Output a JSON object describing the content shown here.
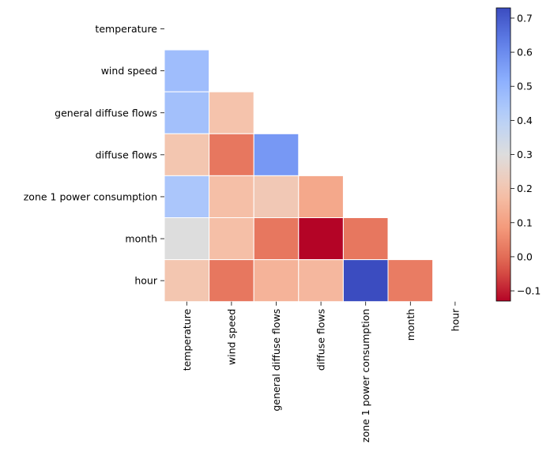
{
  "chart_data": {
    "type": "heatmap",
    "title": "",
    "xlabel": "",
    "ylabel": "",
    "row_labels": [
      "temperature",
      "wind speed",
      "general diffuse flows",
      "diffuse flows",
      "zone 1 power consumption",
      "month",
      "hour"
    ],
    "col_labels": [
      "temperature",
      "wind speed",
      "general diffuse flows",
      "diffuse flows",
      "zone 1 power consumption",
      "month",
      "hour"
    ],
    "mask": "upper-triangle-including-diagonal",
    "values": [
      [
        null,
        null,
        null,
        null,
        null,
        null,
        null
      ],
      [
        0.47,
        null,
        null,
        null,
        null,
        null,
        null
      ],
      [
        0.46,
        0.19,
        null,
        null,
        null,
        null,
        null
      ],
      [
        0.2,
        0.02,
        0.57,
        null,
        null,
        null,
        null
      ],
      [
        0.44,
        0.18,
        0.21,
        0.12,
        null,
        null,
        null
      ],
      [
        0.3,
        0.18,
        0.02,
        -0.13,
        0.02,
        null,
        null
      ],
      [
        0.2,
        0.02,
        0.15,
        0.16,
        0.73,
        0.03,
        null
      ]
    ],
    "colormap": "coolwarm",
    "vmin": -0.13,
    "vmax": 0.73,
    "colorbar": {
      "ticks": [
        -0.1,
        0.0,
        0.1,
        0.2,
        0.3,
        0.4,
        0.5,
        0.6,
        0.7
      ],
      "tick_labels": [
        "−0.1",
        "0.0",
        "0.1",
        "0.2",
        "0.3",
        "0.4",
        "0.5",
        "0.6",
        "0.7"
      ]
    },
    "grid": false,
    "cell_border_color": "#ffffff",
    "legend": "colorbar-right"
  }
}
